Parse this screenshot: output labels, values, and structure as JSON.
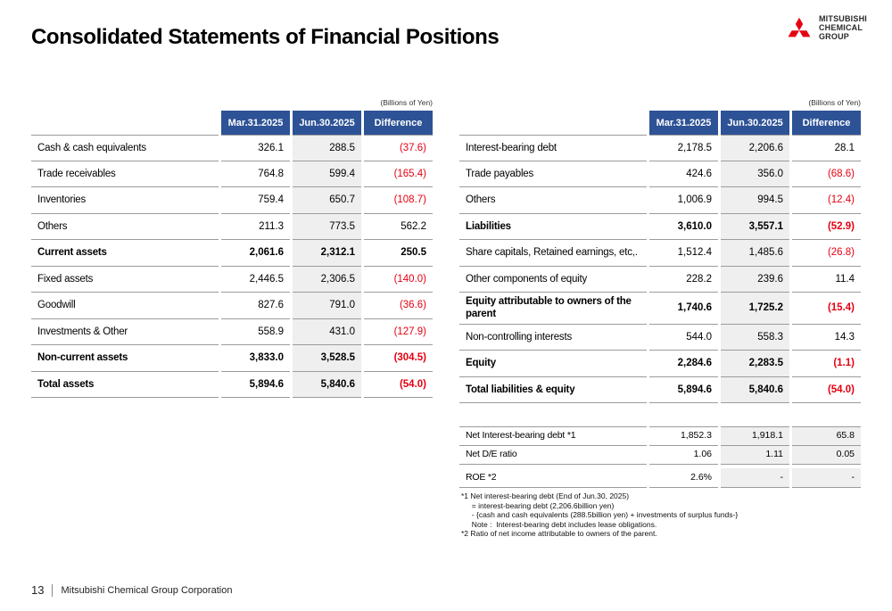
{
  "slide": {
    "title": "Consolidated Statements of Financial Positions",
    "units_note": "(Billions of Yen)",
    "page_number": "13",
    "footer_company": "Mitsubishi Chemical Group Corporation"
  },
  "logo": {
    "lines": [
      "MITSUBISHI",
      "CHEMICAL",
      "GROUP"
    ]
  },
  "columns": [
    "Mar.31.2025",
    "Jun.30.2025",
    "Difference"
  ],
  "assets_table": {
    "rows": [
      {
        "label": "Cash & cash equivalents",
        "bold": false,
        "values": [
          "326.1",
          "288.5",
          "(37.6)"
        ]
      },
      {
        "label": "Trade receivables",
        "bold": false,
        "values": [
          "764.8",
          "599.4",
          "(165.4)"
        ]
      },
      {
        "label": "Inventories",
        "bold": false,
        "values": [
          "759.4",
          "650.7",
          "(108.7)"
        ]
      },
      {
        "label": "Others",
        "bold": false,
        "values": [
          "211.3",
          "773.5",
          "562.2"
        ]
      },
      {
        "label": "Current assets",
        "bold": true,
        "values": [
          "2,061.6",
          "2,312.1",
          "250.5"
        ]
      },
      {
        "label": "Fixed assets",
        "bold": false,
        "values": [
          "2,446.5",
          "2,306.5",
          "(140.0)"
        ]
      },
      {
        "label": "Goodwill",
        "bold": false,
        "values": [
          "827.6",
          "791.0",
          "(36.6)"
        ]
      },
      {
        "label": "Investments & Other",
        "bold": false,
        "values": [
          "558.9",
          "431.0",
          "(127.9)"
        ]
      },
      {
        "label": "Non-current assets",
        "bold": true,
        "values": [
          "3,833.0",
          "3,528.5",
          "(304.5)"
        ]
      },
      {
        "label": "Total assets",
        "bold": true,
        "values": [
          "5,894.6",
          "5,840.6",
          "(54.0)"
        ]
      }
    ]
  },
  "liabilities_table": {
    "rows": [
      {
        "label": "Interest-bearing debt",
        "bold": false,
        "values": [
          "2,178.5",
          "2,206.6",
          "28.1"
        ]
      },
      {
        "label": "Trade payables",
        "bold": false,
        "values": [
          "424.6",
          "356.0",
          "(68.6)"
        ]
      },
      {
        "label": "Others",
        "bold": false,
        "values": [
          "1,006.9",
          "994.5",
          "(12.4)"
        ]
      },
      {
        "label": "Liabilities",
        "bold": true,
        "values": [
          "3,610.0",
          "3,557.1",
          "(52.9)"
        ]
      },
      {
        "label": "Share capitals, Retained earnings, etc,.",
        "bold": false,
        "values": [
          "1,512.4",
          "1,485.6",
          "(26.8)"
        ]
      },
      {
        "label": "Other components of equity",
        "bold": false,
        "values": [
          "228.2",
          "239.6",
          "11.4"
        ]
      },
      {
        "label": "Equity attributable to owners of the parent",
        "bold": true,
        "values": [
          "1,740.6",
          "1,725.2",
          "(15.4)"
        ]
      },
      {
        "label": "Non-controlling interests",
        "bold": false,
        "values": [
          "544.0",
          "558.3",
          "14.3"
        ]
      },
      {
        "label": "Equity",
        "bold": true,
        "values": [
          "2,284.6",
          "2,283.5",
          "(1.1)"
        ]
      },
      {
        "label": "Total liabilities & equity",
        "bold": true,
        "values": [
          "5,894.6",
          "5,840.6",
          "(54.0)"
        ]
      }
    ]
  },
  "metrics_table": {
    "rows": [
      {
        "label": "Net Interest-bearing debt *1",
        "bold": false,
        "values": [
          "1,852.3",
          "1,918.1",
          "65.8"
        ]
      },
      {
        "label": "Net D/E ratio",
        "bold": false,
        "values": [
          "1.06",
          "1.11",
          "0.05"
        ]
      },
      {
        "label": "ROE *2",
        "bold": false,
        "values": [
          "2.6%",
          "-",
          "-"
        ]
      }
    ]
  },
  "footnotes": [
    "*1 Net interest-bearing debt (End of Jun.30, 2025)",
    "     = interest-bearing debt (2,206.6billion yen)",
    "     - {cash and cash equivalents (288.5billion yen) + investments of surplus funds-}",
    "     Note :  Interest-bearing debt includes lease obligations.",
    "*2 Ratio of net income attributable to owners of the parent."
  ],
  "colors": {
    "header_blue": "#2d5296",
    "negative_red": "#e60012",
    "brand_red": "#e60012",
    "shaded_column": "#efefef"
  }
}
